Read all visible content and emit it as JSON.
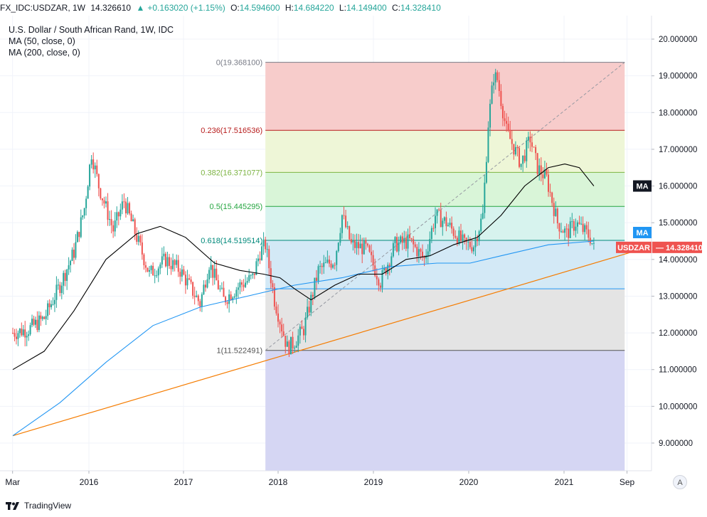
{
  "header": {
    "symbol": "FX_IDC:USDZAR, 1W",
    "last": "14.326610",
    "change": "+0.163020 (+1.15%)",
    "o_label": "O:",
    "o_value": "14.594600",
    "h_label": "H:",
    "h_value": "14.684220",
    "l_label": "L:",
    "l_value": "14.149400",
    "c_label": "C:",
    "c_value": "14.328410"
  },
  "legend": {
    "title": "U.S. Dollar / South African Rand, 1W, IDC",
    "ma1": "MA (50, close, 0)",
    "ma2": "MA (200, close, 0)"
  },
  "footer": {
    "brand": "TradingView",
    "autoscale": "A"
  },
  "colors": {
    "up": "#26a69a",
    "down": "#ef5350",
    "ma50": "#000000",
    "ma200": "#2196f3",
    "trendline": "#f57c00",
    "price_tag": "#ef5350",
    "ma_tag_black": "#131722",
    "ma_tag_blue": "#2196f3"
  },
  "chart_data": {
    "type": "candlestick",
    "title": "U.S. Dollar / South African Rand, 1W, IDC",
    "x_axis": {
      "type": "date",
      "tick_labels": [
        "Mar",
        "2016",
        "2017",
        "2018",
        "2019",
        "2020",
        "2021",
        "Sep"
      ]
    },
    "y_axis": {
      "range": [
        8.3,
        20.5
      ],
      "ticks": [
        "20.000000",
        "19.000000",
        "18.000000",
        "17.000000",
        "16.000000",
        "15.000000",
        "14.000000",
        "13.000000",
        "12.000000",
        "11.000000",
        "10.000000",
        "9.000000"
      ],
      "position": "right"
    },
    "grid": true,
    "price_path": [
      [
        "2015-03-02",
        12.0
      ],
      [
        "2015-05-04",
        12.1
      ],
      [
        "2015-07-06",
        12.4
      ],
      [
        "2015-09-07",
        13.3
      ],
      [
        "2015-11-02",
        14.2
      ],
      [
        "2015-12-14",
        15.4
      ],
      [
        "2016-01-11",
        16.9
      ],
      [
        "2016-02-08",
        16.0
      ],
      [
        "2016-04-04",
        14.8
      ],
      [
        "2016-05-16",
        15.6
      ],
      [
        "2016-07-04",
        14.6
      ],
      [
        "2016-08-22",
        13.6
      ],
      [
        "2016-10-24",
        14.0
      ],
      [
        "2016-12-19",
        13.7
      ],
      [
        "2017-03-06",
        12.8
      ],
      [
        "2017-04-10",
        13.9
      ],
      [
        "2017-06-05",
        12.9
      ],
      [
        "2017-08-07",
        13.3
      ],
      [
        "2017-09-25",
        13.5
      ],
      [
        "2017-10-23",
        14.2
      ],
      [
        "2017-11-13",
        14.4
      ],
      [
        "2017-12-18",
        12.9
      ],
      [
        "2018-02-05",
        11.6
      ],
      [
        "2018-02-26",
        11.7
      ],
      [
        "2018-04-09",
        12.1
      ],
      [
        "2018-06-04",
        13.7
      ],
      [
        "2018-08-06",
        14.0
      ],
      [
        "2018-09-03",
        15.2
      ],
      [
        "2018-10-08",
        14.4
      ],
      [
        "2018-12-03",
        14.3
      ],
      [
        "2019-01-28",
        13.4
      ],
      [
        "2019-03-25",
        14.4
      ],
      [
        "2019-05-20",
        14.5
      ],
      [
        "2019-07-15",
        14.0
      ],
      [
        "2019-08-26",
        15.2
      ],
      [
        "2019-10-07",
        15.0
      ],
      [
        "2019-12-16",
        14.4
      ],
      [
        "2020-01-20",
        14.4
      ],
      [
        "2020-02-24",
        15.2
      ],
      [
        "2020-03-16",
        17.7
      ],
      [
        "2020-04-06",
        19.0
      ],
      [
        "2020-04-20",
        18.9
      ],
      [
        "2020-05-25",
        17.5
      ],
      [
        "2020-07-20",
        16.6
      ],
      [
        "2020-08-24",
        17.3
      ],
      [
        "2020-09-21",
        16.5
      ],
      [
        "2020-10-26",
        16.2
      ],
      [
        "2020-12-07",
        15.0
      ],
      [
        "2021-01-11",
        14.7
      ],
      [
        "2021-02-15",
        15.0
      ],
      [
        "2021-03-15",
        14.8
      ],
      [
        "2021-04-12",
        14.6
      ],
      [
        "2021-04-26",
        14.3
      ]
    ],
    "ma50_path": [
      [
        "2015-03-02",
        11.0
      ],
      [
        "2015-07-06",
        11.5
      ],
      [
        "2015-11-02",
        12.6
      ],
      [
        "2016-03-07",
        14.0
      ],
      [
        "2016-07-04",
        14.7
      ],
      [
        "2016-10-03",
        14.9
      ],
      [
        "2017-01-09",
        14.6
      ],
      [
        "2017-05-01",
        13.9
      ],
      [
        "2017-08-07",
        13.7
      ],
      [
        "2017-11-06",
        13.6
      ],
      [
        "2018-01-08",
        13.5
      ],
      [
        "2018-03-05",
        13.2
      ],
      [
        "2018-05-07",
        12.9
      ],
      [
        "2018-08-06",
        13.3
      ],
      [
        "2018-11-05",
        13.6
      ],
      [
        "2019-02-04",
        13.6
      ],
      [
        "2019-05-06",
        14.0
      ],
      [
        "2019-08-05",
        14.1
      ],
      [
        "2019-11-04",
        14.4
      ],
      [
        "2020-02-03",
        14.6
      ],
      [
        "2020-05-04",
        15.2
      ],
      [
        "2020-08-03",
        16.0
      ],
      [
        "2020-11-02",
        16.5
      ],
      [
        "2021-01-04",
        16.6
      ],
      [
        "2021-03-01",
        16.5
      ],
      [
        "2021-04-26",
        16.0
      ]
    ],
    "ma200_path": [
      [
        "2015-03-02",
        9.2
      ],
      [
        "2015-09-07",
        10.1
      ],
      [
        "2016-03-07",
        11.2
      ],
      [
        "2016-09-05",
        12.2
      ],
      [
        "2017-03-06",
        12.7
      ],
      [
        "2017-09-04",
        13.0
      ],
      [
        "2018-03-05",
        13.3
      ],
      [
        "2018-09-03",
        13.5
      ],
      [
        "2019-03-04",
        13.8
      ],
      [
        "2019-09-02",
        13.9
      ],
      [
        "2020-01-06",
        13.9
      ],
      [
        "2020-05-04",
        14.1
      ],
      [
        "2020-11-02",
        14.4
      ],
      [
        "2021-04-26",
        14.5
      ]
    ],
    "trendline": [
      [
        "2015-03-02",
        9.2
      ],
      [
        "2021-08-02",
        14.1
      ]
    ],
    "fib_retracement": {
      "start_date": "2017-11-13",
      "end_date": "2021-08-23",
      "levels": [
        {
          "ratio": 0,
          "price": 19.3681,
          "label": "0(19.368100)",
          "color": "#787b86",
          "fill": "#f7cccb"
        },
        {
          "ratio": 0.236,
          "price": 17.516536,
          "label": "0.236(17.516536)",
          "color": "#b71c1c",
          "fill": "#eef6d7"
        },
        {
          "ratio": 0.382,
          "price": 16.371077,
          "label": "0.382(16.371077)",
          "color": "#7cb342",
          "fill": "#d9f5d8"
        },
        {
          "ratio": 0.5,
          "price": 15.445295,
          "label": "0.5(15.445295)",
          "color": "#26a641",
          "fill": "#d7f3ee"
        },
        {
          "ratio": 0.618,
          "price": 14.519514,
          "label": "0.618(14.519514)",
          "color": "#00897b",
          "fill": "#d3e9f6"
        },
        {
          "ratio": 0.786,
          "price": 13.201,
          "label": "",
          "color": "#2196f3",
          "fill": "#e4e4e4"
        },
        {
          "ratio": 1,
          "price": 11.522491,
          "label": "1(11.522491)",
          "color": "#555555",
          "fill": "#d5d6f3"
        }
      ]
    },
    "price_tags": [
      {
        "label": "USDZAR",
        "value": "14.328410",
        "color": "#ef5350"
      },
      {
        "label": "MA",
        "color": "#131722"
      },
      {
        "label": "MA",
        "color": "#2196f3"
      }
    ]
  }
}
